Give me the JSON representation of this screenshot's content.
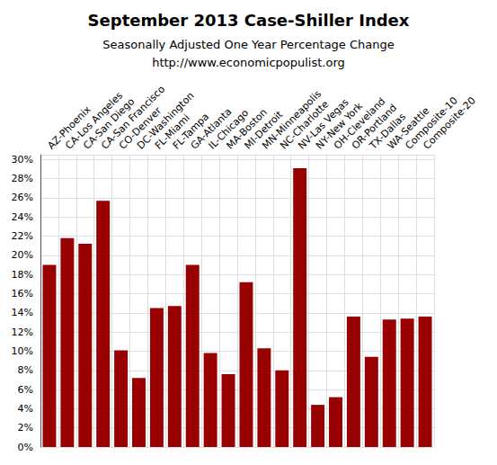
{
  "chart_data": {
    "type": "bar",
    "title": "September 2013 Case-Shiller Index",
    "subtitle": "Seasonally Adjusted One Year Percentage Change",
    "annotations": [
      "http://www.economicpopulist.org"
    ],
    "categories": [
      "AZ-Phoenix",
      "CA-Los Angeles",
      "CA-San Diego",
      "CA-San Francisco",
      "CO-Denver",
      "DC-Washington",
      "FL-Miami",
      "FL-Tampa",
      "GA-Atlanta",
      "IL-Chicago",
      "MA-Boston",
      "MI-Detroit",
      "MN-Minneapolis",
      "NC-Charlotte",
      "NV-Las Vegas",
      "NY-New York",
      "OH-Cleveland",
      "OR-Portland",
      "TX-Dallas",
      "WA-Seattle",
      "Composite-10",
      "Composite-20"
    ],
    "values": [
      19.0,
      21.8,
      21.2,
      25.7,
      10.1,
      7.2,
      14.5,
      14.7,
      19.0,
      9.8,
      7.6,
      17.2,
      10.3,
      8.0,
      29.1,
      4.4,
      5.2,
      13.6,
      9.4,
      13.3,
      13.4,
      13.6
    ],
    "color": "#990000",
    "ylim": [
      0,
      30.5
    ],
    "yticks": [
      {
        "value": 0,
        "label": "0%"
      },
      {
        "value": 2,
        "label": "2%"
      },
      {
        "value": 4,
        "label": "4%"
      },
      {
        "value": 6,
        "label": "6%"
      },
      {
        "value": 8,
        "label": "8%"
      },
      {
        "value": 10,
        "label": "10%"
      },
      {
        "value": 12,
        "label": "12%"
      },
      {
        "value": 14,
        "label": "14%"
      },
      {
        "value": 16,
        "label": "16%"
      },
      {
        "value": 18,
        "label": "18%"
      },
      {
        "value": 20,
        "label": "20%"
      },
      {
        "value": 22,
        "label": "22%"
      },
      {
        "value": 24,
        "label": "24%"
      },
      {
        "value": 26,
        "label": "26%"
      },
      {
        "value": 28,
        "label": "28%"
      },
      {
        "value": 30,
        "label": "30%"
      }
    ],
    "grid": true
  }
}
